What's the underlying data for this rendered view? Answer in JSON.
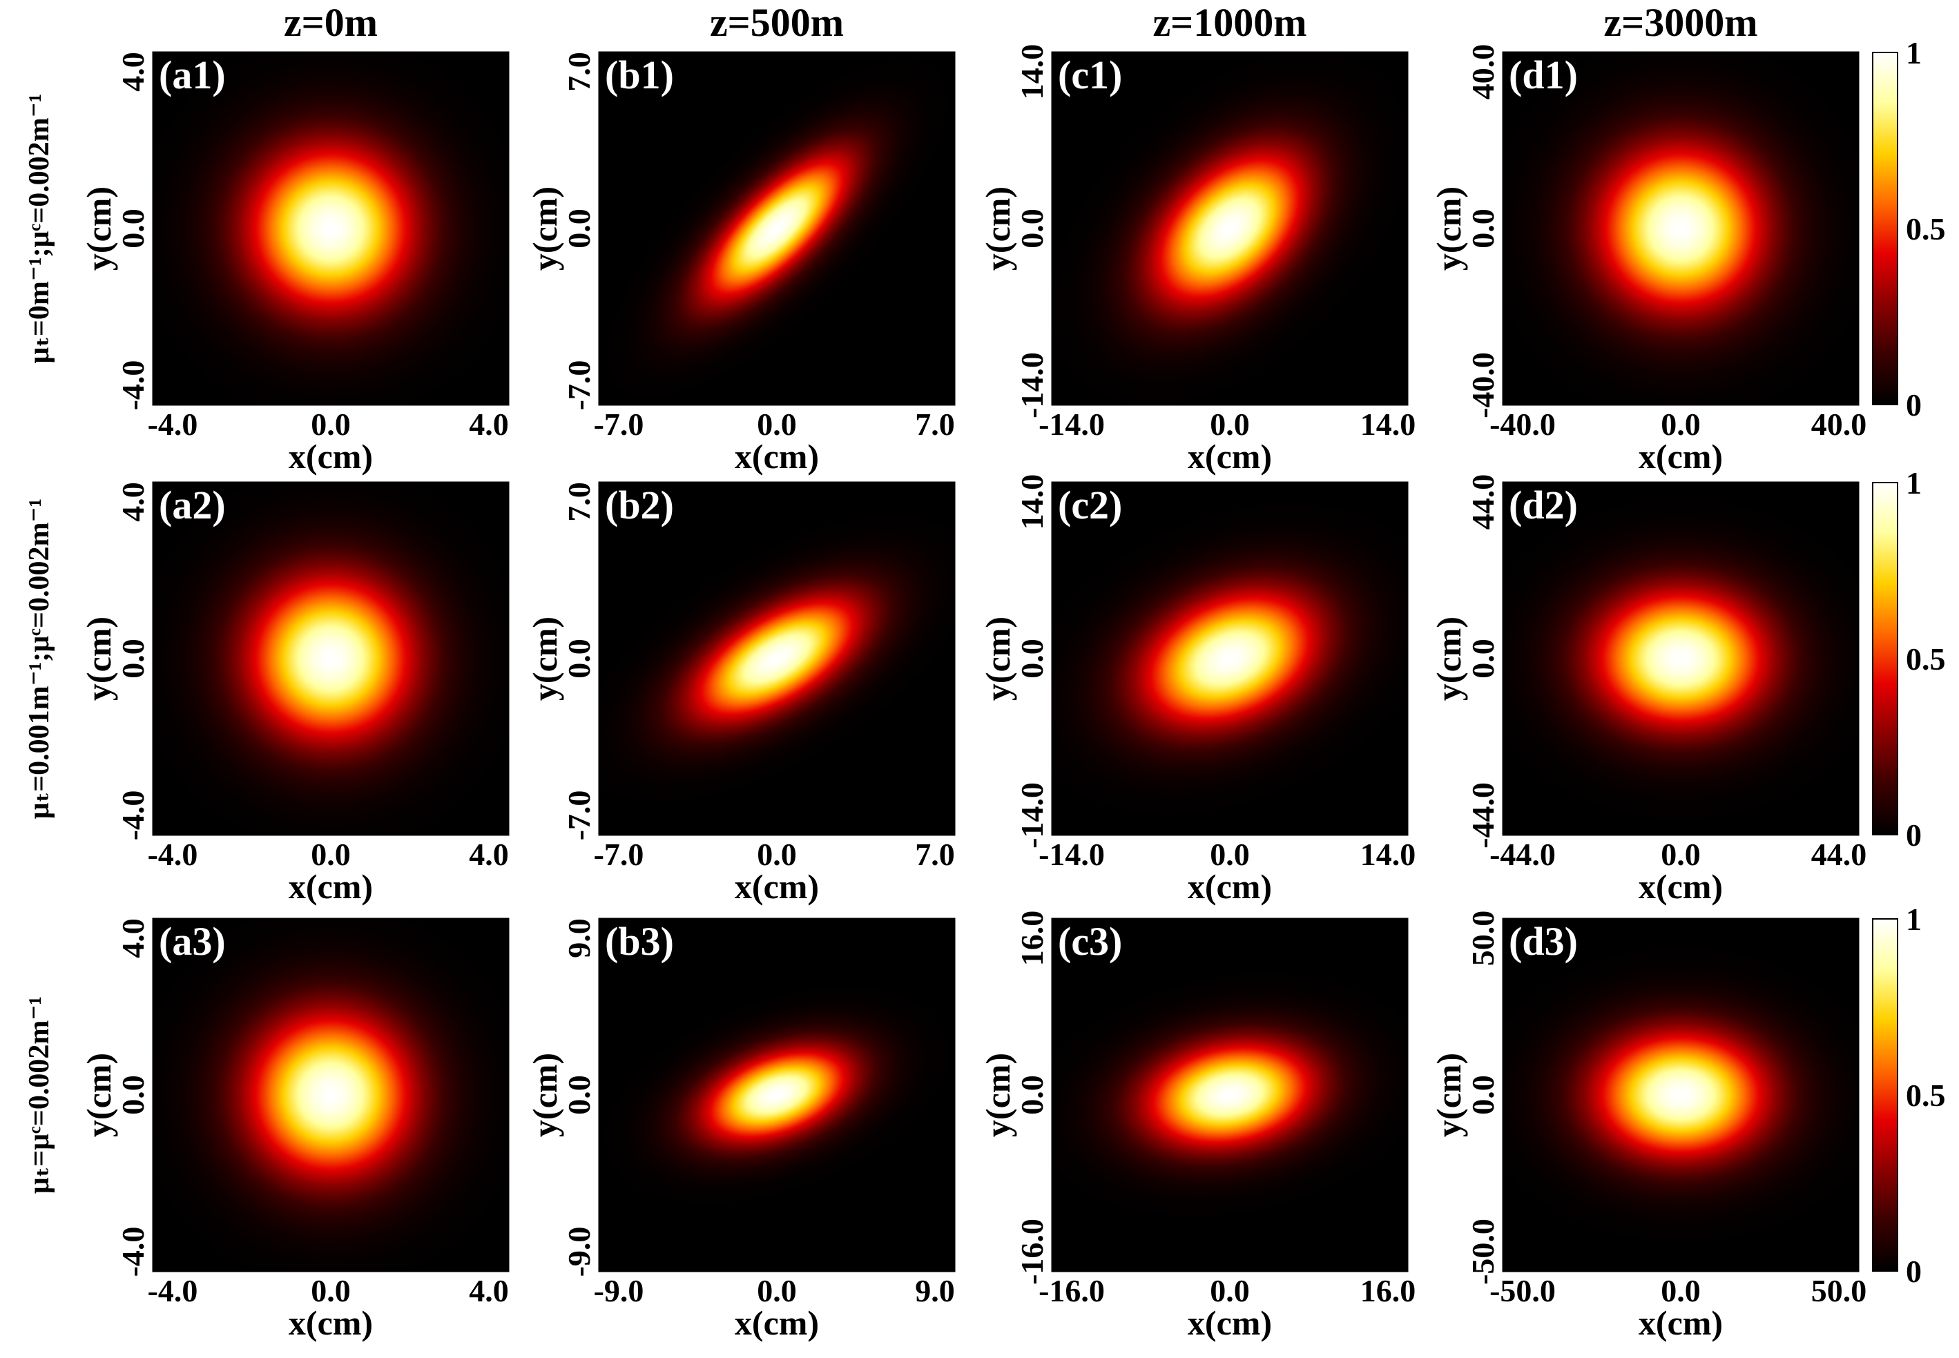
{
  "chart_data": {
    "type": "heatmap",
    "column_titles": [
      "z=0m",
      "z=500m",
      "z=1000m",
      "z=3000m"
    ],
    "row_labels": [
      "μₜ=0m⁻¹;μᶜ=0.002m⁻¹",
      "μₜ=0.001m⁻¹;μᶜ=0.002m⁻¹",
      "μₜ=μᶜ=0.002m⁻¹"
    ],
    "colormap": [
      "#000000",
      "#3a0000",
      "#8b0000",
      "#e60000",
      "#ff6a00",
      "#ffd000",
      "#ffffa0",
      "#ffffff"
    ],
    "colorbar": {
      "min": 0,
      "max": 1,
      "ticks": [
        {
          "v": 0,
          "label": "0"
        },
        {
          "v": 0.5,
          "label": "0.5"
        },
        {
          "v": 1,
          "label": "1"
        }
      ]
    },
    "xlabel": "x(cm)",
    "ylabel": "y(cm)",
    "panels": [
      {
        "id": "a1",
        "label": "(a1)",
        "row": 0,
        "col": 0,
        "range": 4,
        "ticks": [
          "-4.0",
          "0.0",
          "4.0"
        ],
        "sx": 1.3,
        "sy": 1.3,
        "rho": 0.0
      },
      {
        "id": "b1",
        "label": "(b1)",
        "row": 0,
        "col": 1,
        "range": 7,
        "ticks": [
          "-7.0",
          "0.0",
          "7.0"
        ],
        "sx": 2.0,
        "sy": 2.0,
        "rho": 0.75
      },
      {
        "id": "c1",
        "label": "(c1)",
        "row": 0,
        "col": 2,
        "range": 14,
        "ticks": [
          "-14.0",
          "0.0",
          "14.0"
        ],
        "sx": 4.2,
        "sy": 4.2,
        "rho": 0.45
      },
      {
        "id": "d1",
        "label": "(d1)",
        "row": 0,
        "col": 3,
        "range": 40,
        "ticks": [
          "-40.0",
          "0.0",
          "40.0"
        ],
        "sx": 13.0,
        "sy": 13.0,
        "rho": 0.0
      },
      {
        "id": "a2",
        "label": "(a2)",
        "row": 1,
        "col": 0,
        "range": 4,
        "ticks": [
          "-4.0",
          "0.0",
          "4.0"
        ],
        "sx": 1.3,
        "sy": 1.3,
        "rho": 0.0
      },
      {
        "id": "b2",
        "label": "(b2)",
        "row": 1,
        "col": 1,
        "range": 7,
        "ticks": [
          "-7.0",
          "0.0",
          "7.0"
        ],
        "sx": 2.3,
        "sy": 1.7,
        "rho": 0.6
      },
      {
        "id": "c2",
        "label": "(c2)",
        "row": 1,
        "col": 2,
        "range": 14,
        "ticks": [
          "-14.0",
          "0.0",
          "14.0"
        ],
        "sx": 4.8,
        "sy": 3.7,
        "rho": 0.3
      },
      {
        "id": "d2",
        "label": "(d2)",
        "row": 1,
        "col": 3,
        "range": 44,
        "ticks": [
          "-44.0",
          "0.0",
          "44.0"
        ],
        "sx": 15.0,
        "sy": 12.0,
        "rho": 0.0
      },
      {
        "id": "a3",
        "label": "(a3)",
        "row": 2,
        "col": 0,
        "range": 4,
        "ticks": [
          "-4.0",
          "0.0",
          "4.0"
        ],
        "sx": 1.3,
        "sy": 1.3,
        "rho": 0.0
      },
      {
        "id": "b3",
        "label": "(b3)",
        "row": 2,
        "col": 1,
        "range": 9,
        "ticks": [
          "-9.0",
          "0.0",
          "9.0"
        ],
        "sx": 2.6,
        "sy": 1.65,
        "rho": 0.4
      },
      {
        "id": "c3",
        "label": "(c3)",
        "row": 2,
        "col": 2,
        "range": 16,
        "ticks": [
          "-16.0",
          "0.0",
          "16.0"
        ],
        "sx": 5.3,
        "sy": 3.3,
        "rho": 0.18
      },
      {
        "id": "d3",
        "label": "(d3)",
        "row": 2,
        "col": 3,
        "range": 50,
        "ticks": [
          "-50.0",
          "0.0",
          "50.0"
        ],
        "sx": 17.0,
        "sy": 12.5,
        "rho": 0.0
      }
    ]
  }
}
